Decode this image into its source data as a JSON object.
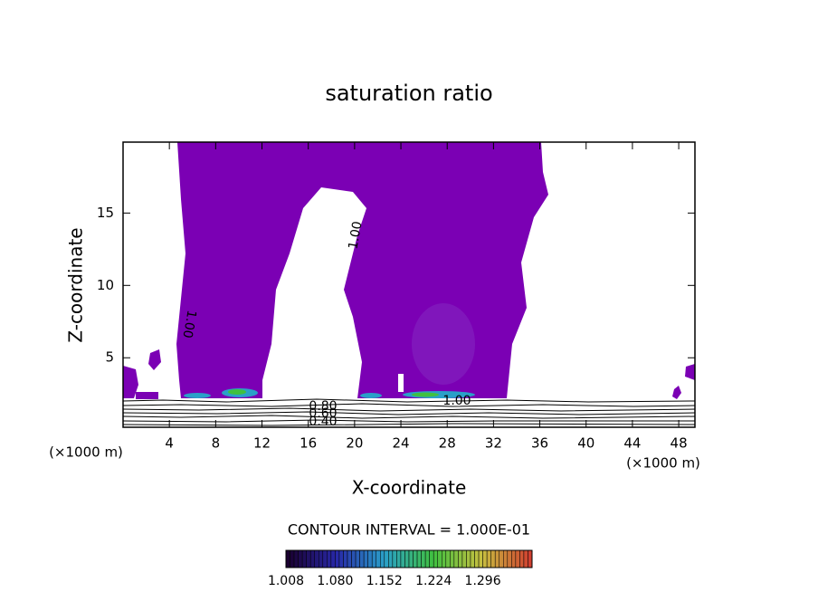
{
  "chart_data": {
    "type": "contour",
    "title": "saturation ratio",
    "xlabel": "X-coordinate",
    "ylabel": "Z-coordinate",
    "xunit": "(×1000 m)",
    "yunit": "(×1000 m)",
    "xlim": [
      0,
      49.4
    ],
    "ylim": [
      0.2,
      19.9
    ],
    "xticks": [
      4,
      8,
      12,
      16,
      20,
      24,
      28,
      32,
      36,
      40,
      44,
      48
    ],
    "yticks": [
      5,
      10,
      15
    ],
    "fill_color": "#7b00b4",
    "contour_labels": [
      "1.00",
      "1.00",
      "1.00",
      "0.80",
      "0.60",
      "0.40"
    ],
    "contour_interval": "CONTOUR INTERVAL = 1.000E-01",
    "colorbar": {
      "lim": [
        1.008,
        1.368
      ],
      "ticks": [
        {
          "value": 1.008,
          "label": "1.008"
        },
        {
          "value": 1.08,
          "label": "1.080"
        },
        {
          "value": 1.152,
          "label": "1.152"
        },
        {
          "value": 1.224,
          "label": "1.224"
        },
        {
          "value": 1.296,
          "label": "1.296"
        }
      ],
      "colors": [
        "#1a0030",
        "#2828a8",
        "#2aa0c8",
        "#40c040",
        "#c8c040",
        "#d04030"
      ]
    }
  }
}
